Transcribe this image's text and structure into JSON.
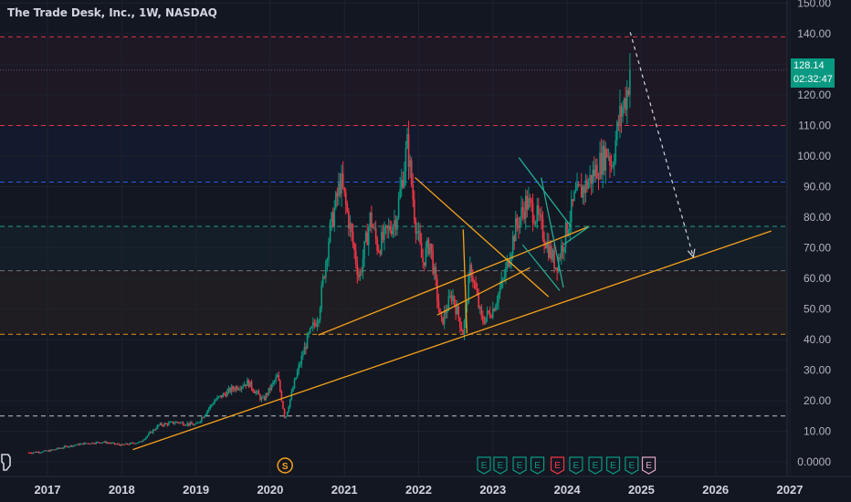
{
  "title": "The Trade Desk, Inc., 1W, NASDAQ",
  "price_badge": {
    "price": "128.14",
    "countdown": "02:32:47"
  },
  "colors": {
    "background": "#131722",
    "up": "#089981",
    "down": "#f23645",
    "trendline": "#f7a21b",
    "channel": "#22ab94",
    "red_level": "#f23645",
    "blue_level": "#2962ff"
  },
  "icons": [
    "dividend-icon",
    "earnings-icon"
  ],
  "chart_data": {
    "type": "candlestick",
    "title": "The Trade Desk, Inc., 1W, NASDAQ",
    "x_axis_labels": [
      "2017",
      "2018",
      "2019",
      "2020",
      "2021",
      "2022",
      "2023",
      "2024",
      "2025",
      "2026",
      "2027"
    ],
    "y_axis_labels": [
      "0.0000",
      "10.00",
      "20.00",
      "30.00",
      "40.00",
      "50.00",
      "60.00",
      "70.00",
      "80.00",
      "90.00",
      "100.00",
      "110.00",
      "120.00",
      "130.00",
      "140.00",
      "150.00"
    ],
    "ylim": [
      0,
      150
    ],
    "xlim": [
      2016.6,
      2027.1
    ],
    "last_price": 128.14,
    "countdown": "02:32:47",
    "horizontal_levels": [
      {
        "price": 139.0,
        "color": "#f23645",
        "style": "dashed"
      },
      {
        "price": 128.14,
        "color": "#5d606b",
        "style": "dotted"
      },
      {
        "price": 110.0,
        "color": "#f23645",
        "style": "dashed"
      },
      {
        "price": 91.5,
        "color": "#2962ff",
        "style": "dashed"
      },
      {
        "price": 77.0,
        "color": "#22ab94",
        "style": "dashed"
      },
      {
        "price": 62.5,
        "color": "#787b86",
        "style": "dashed"
      },
      {
        "price": 41.7,
        "color": "#f7a21b",
        "style": "dashed"
      },
      {
        "price": 15.0,
        "color": "#d1d4dc",
        "style": "dashed"
      }
    ],
    "zones": [
      {
        "from": 62.5,
        "to": 77.0,
        "color": "#22ab94"
      },
      {
        "from": 41.7,
        "to": 62.5,
        "color": "#f7a21b"
      },
      {
        "from": 91.5,
        "to": 110.0,
        "color": "#2962ff"
      },
      {
        "from": 110.0,
        "to": 139.0,
        "color": "#f23645"
      }
    ],
    "trendlines": [
      {
        "from": [
          2018.15,
          4.0
        ],
        "to": [
          2026.75,
          75.5
        ],
        "color": "#f7a21b"
      },
      {
        "from": [
          2020.65,
          41.5
        ],
        "to": [
          2024.3,
          77.0
        ],
        "color": "#f7a21b"
      },
      {
        "from": [
          2021.95,
          93.0
        ],
        "to": [
          2023.75,
          54.0
        ],
        "color": "#f7a21b"
      },
      {
        "from": [
          2022.25,
          48.0
        ],
        "to": [
          2023.5,
          63.5
        ],
        "color": "#f7a21b"
      },
      {
        "from": [
          2022.6,
          76.0
        ],
        "to": [
          2022.65,
          42.0
        ],
        "color": "#f7a21b"
      },
      {
        "from": [
          2023.4,
          71.0
        ],
        "to": [
          2023.9,
          56.0
        ],
        "color": "#22ab94"
      },
      {
        "from": [
          2023.35,
          99.5
        ],
        "to": [
          2024.05,
          77.0
        ],
        "color": "#22ab94"
      },
      {
        "from": [
          2023.65,
          93.0
        ],
        "to": [
          2023.95,
          57.0
        ],
        "color": "#22ab94"
      },
      {
        "from": [
          2023.95,
          71.0
        ],
        "to": [
          2024.3,
          77.0
        ],
        "color": "#22ab94"
      }
    ],
    "projection": {
      "from": [
        2024.85,
        140.5
      ],
      "to": [
        2025.7,
        67.0
      ],
      "color": "#d1d4dc",
      "style": "dashed",
      "arrow": true
    },
    "price_path": [
      [
        2016.75,
        3.0
      ],
      [
        2017.0,
        3.5
      ],
      [
        2017.25,
        5.0
      ],
      [
        2017.5,
        6.0
      ],
      [
        2017.75,
        6.5
      ],
      [
        2018.0,
        5.5
      ],
      [
        2018.25,
        6.5
      ],
      [
        2018.5,
        12.0
      ],
      [
        2018.75,
        13.0
      ],
      [
        2019.0,
        12.0
      ],
      [
        2019.25,
        20.0
      ],
      [
        2019.5,
        24.0
      ],
      [
        2019.7,
        26.0
      ],
      [
        2019.9,
        20.0
      ],
      [
        2020.1,
        28.0
      ],
      [
        2020.2,
        14.0
      ],
      [
        2020.35,
        28.0
      ],
      [
        2020.5,
        40.0
      ],
      [
        2020.65,
        48.0
      ],
      [
        2020.8,
        75.0
      ],
      [
        2020.95,
        92.0
      ],
      [
        2021.05,
        80.0
      ],
      [
        2021.2,
        60.0
      ],
      [
        2021.35,
        80.0
      ],
      [
        2021.45,
        70.0
      ],
      [
        2021.6,
        76.0
      ],
      [
        2021.7,
        80.0
      ],
      [
        2021.85,
        104.0
      ],
      [
        2021.95,
        80.0
      ],
      [
        2022.05,
        65.0
      ],
      [
        2022.15,
        72.0
      ],
      [
        2022.3,
        45.0
      ],
      [
        2022.45,
        55.0
      ],
      [
        2022.6,
        42.0
      ],
      [
        2022.7,
        64.0
      ],
      [
        2022.85,
        46.0
      ],
      [
        2023.0,
        50.0
      ],
      [
        2023.15,
        60.0
      ],
      [
        2023.3,
        76.0
      ],
      [
        2023.45,
        85.0
      ],
      [
        2023.6,
        80.0
      ],
      [
        2023.75,
        70.0
      ],
      [
        2023.85,
        64.0
      ],
      [
        2023.95,
        72.0
      ],
      [
        2024.1,
        86.0
      ],
      [
        2024.3,
        92.0
      ],
      [
        2024.45,
        98.0
      ],
      [
        2024.55,
        102.0
      ],
      [
        2024.6,
        97.0
      ],
      [
        2024.7,
        112.0
      ],
      [
        2024.8,
        120.0
      ],
      [
        2024.85,
        128.14
      ]
    ],
    "events": {
      "dividend": {
        "x": 2020.2,
        "label": "S"
      },
      "earnings": [
        {
          "x": 2022.88,
          "label": "E"
        },
        {
          "x": 2023.1,
          "label": "E"
        },
        {
          "x": 2023.36,
          "label": "E"
        },
        {
          "x": 2023.6,
          "label": "E"
        },
        {
          "x": 2023.87,
          "label": "E"
        },
        {
          "x": 2024.12,
          "label": "E"
        },
        {
          "x": 2024.38,
          "label": "E"
        },
        {
          "x": 2024.62,
          "label": "E"
        },
        {
          "x": 2024.87,
          "label": "E"
        },
        {
          "x": 2025.1,
          "label": "E"
        }
      ]
    }
  }
}
